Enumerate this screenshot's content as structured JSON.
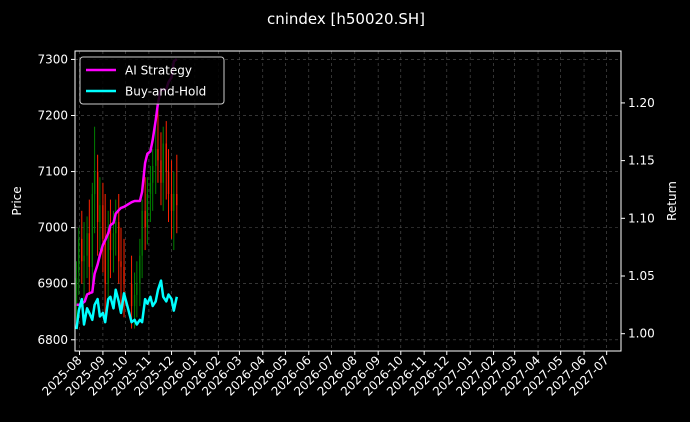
{
  "chart_data": {
    "type": "line",
    "title": "cnindex [h50020.SH]",
    "xlabel": "",
    "ylabel_left": "Price",
    "ylabel_right": "Return",
    "grid": true,
    "legend_position": "top-left",
    "x_range": [
      "2025-07-26",
      "2027-07-20"
    ],
    "x_ticks": [
      "2025-08",
      "2025-09",
      "2025-10",
      "2025-11",
      "2025-12",
      "2026-01",
      "2026-02",
      "2026-03",
      "2026-04",
      "2026-05",
      "2026-06",
      "2026-07",
      "2026-08",
      "2026-09",
      "2026-10",
      "2026-11",
      "2026-12",
      "2027-01",
      "2027-02",
      "2027-03",
      "2027-04",
      "2027-05",
      "2027-06",
      "2027-07"
    ],
    "y_left_range": [
      6780,
      7315
    ],
    "y_left_ticks": [
      6800,
      6900,
      7000,
      7100,
      7200,
      7300
    ],
    "y_right_range": [
      0.985,
      1.245
    ],
    "y_right_ticks": [
      "1.00",
      "1.05",
      "1.10",
      "1.15",
      "1.20"
    ],
    "series": [
      {
        "name": "AI Strategy",
        "axis": "right",
        "color": "#ff00ff",
        "x": [
          "2025-07-28",
          "2025-08-01",
          "2025-08-04",
          "2025-08-08",
          "2025-08-11",
          "2025-08-14",
          "2025-08-18",
          "2025-08-21",
          "2025-08-25",
          "2025-08-28",
          "2025-09-01",
          "2025-09-04",
          "2025-09-08",
          "2025-09-11",
          "2025-09-15",
          "2025-09-18",
          "2025-09-22",
          "2025-09-25",
          "2025-09-29",
          "2025-10-09",
          "2025-10-13",
          "2025-10-16",
          "2025-10-20",
          "2025-10-23",
          "2025-10-27",
          "2025-10-30",
          "2025-11-03",
          "2025-11-06",
          "2025-11-10",
          "2025-11-13",
          "2025-11-17",
          "2025-11-20",
          "2025-11-24",
          "2025-11-27",
          "2025-12-01",
          "2025-12-04",
          "2025-12-08"
        ],
        "y": [
          1.025,
          1.025,
          1.026,
          1.028,
          1.034,
          1.035,
          1.036,
          1.052,
          1.06,
          1.068,
          1.077,
          1.081,
          1.087,
          1.094,
          1.096,
          1.104,
          1.107,
          1.109,
          1.11,
          1.114,
          1.115,
          1.115,
          1.115,
          1.123,
          1.148,
          1.156,
          1.158,
          1.168,
          1.185,
          1.2,
          1.212,
          1.211,
          1.212,
          1.218,
          1.222,
          1.236,
          1.238
        ]
      },
      {
        "name": "Buy-and-Hold",
        "axis": "right",
        "color": "#00ffff",
        "x": [
          "2025-07-28",
          "2025-07-31",
          "2025-08-04",
          "2025-08-07",
          "2025-08-11",
          "2025-08-14",
          "2025-08-18",
          "2025-08-21",
          "2025-08-25",
          "2025-08-28",
          "2025-09-01",
          "2025-09-04",
          "2025-09-08",
          "2025-09-11",
          "2025-09-15",
          "2025-09-18",
          "2025-09-22",
          "2025-09-25",
          "2025-09-29",
          "2025-10-09",
          "2025-10-13",
          "2025-10-16",
          "2025-10-20",
          "2025-10-23",
          "2025-10-27",
          "2025-10-30",
          "2025-11-03",
          "2025-11-06",
          "2025-11-10",
          "2025-11-13",
          "2025-11-17",
          "2025-11-20",
          "2025-11-24",
          "2025-11-27",
          "2025-12-01",
          "2025-12-04",
          "2025-12-08"
        ],
        "y": [
          1.004,
          1.02,
          1.03,
          1.008,
          1.022,
          1.018,
          1.012,
          1.025,
          1.03,
          1.015,
          1.018,
          1.01,
          1.03,
          1.032,
          1.022,
          1.038,
          1.028,
          1.018,
          1.035,
          1.01,
          1.012,
          1.008,
          1.012,
          1.01,
          1.03,
          1.026,
          1.032,
          1.024,
          1.028,
          1.038,
          1.046,
          1.032,
          1.028,
          1.034,
          1.03,
          1.02,
          1.032
        ]
      }
    ],
    "candles": {
      "axis": "left",
      "up_color": "#008000",
      "down_color": "#ff2200",
      "x": [
        "2025-07-28",
        "2025-07-31",
        "2025-08-04",
        "2025-08-07",
        "2025-08-11",
        "2025-08-14",
        "2025-08-18",
        "2025-08-21",
        "2025-08-25",
        "2025-08-28",
        "2025-09-01",
        "2025-09-04",
        "2025-09-08",
        "2025-09-11",
        "2025-09-15",
        "2025-09-18",
        "2025-09-22",
        "2025-09-25",
        "2025-09-29",
        "2025-10-09",
        "2025-10-13",
        "2025-10-16",
        "2025-10-20",
        "2025-10-23",
        "2025-10-27",
        "2025-10-30",
        "2025-11-03",
        "2025-11-06",
        "2025-11-10",
        "2025-11-13",
        "2025-11-17",
        "2025-11-20",
        "2025-11-24",
        "2025-11-27",
        "2025-12-01",
        "2025-12-04",
        "2025-12-08"
      ],
      "open": [
        6860,
        6920,
        6980,
        6940,
        6950,
        6990,
        6930,
        7060,
        7100,
        7010,
        7040,
        6980,
        6900,
        7000,
        6960,
        6990,
        7010,
        6940,
        6930,
        6900,
        6860,
        6880,
        6900,
        6950,
        7030,
        7000,
        7060,
        7080,
        7110,
        7140,
        7120,
        7080,
        7150,
        7100,
        7060,
        7030,
        7060
      ],
      "close": [
        6910,
        6980,
        6940,
        6950,
        6990,
        6930,
        7060,
        7100,
        7010,
        7040,
        6980,
        6900,
        7000,
        6960,
        6990,
        7010,
        6940,
        6930,
        6900,
        6860,
        6880,
        6900,
        6950,
        7030,
        7000,
        7060,
        7080,
        7110,
        7140,
        7120,
        7080,
        7150,
        7100,
        7060,
        7030,
        7060,
        7040
      ],
      "high": [
        6940,
        7000,
        7030,
        7010,
        7020,
        7050,
        7080,
        7180,
        7130,
        7090,
        7080,
        7060,
        7030,
        7050,
        7030,
        7050,
        7060,
        7000,
        6980,
        6950,
        6920,
        6940,
        6980,
        7050,
        7090,
        7090,
        7110,
        7140,
        7190,
        7230,
        7170,
        7180,
        7190,
        7140,
        7120,
        7100,
        7130
      ],
      "low": [
        6830,
        6880,
        6900,
        6870,
        6910,
        6880,
        6890,
        6990,
        6950,
        6960,
        6920,
        6830,
        6860,
        6910,
        6920,
        6950,
        6900,
        6860,
        6840,
        6820,
        6820,
        6840,
        6860,
        6910,
        6960,
        6970,
        7010,
        7030,
        7060,
        7080,
        7040,
        7030,
        7050,
        7010,
        6980,
        6960,
        6990
      ]
    }
  }
}
